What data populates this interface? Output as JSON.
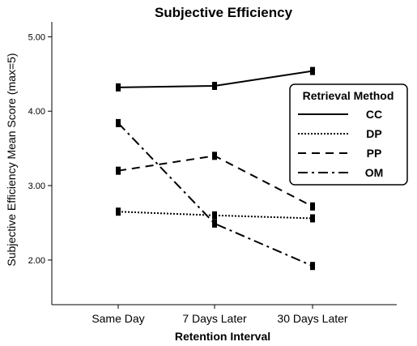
{
  "chart_data": {
    "type": "line",
    "title": "Subjective Efficiency",
    "xlabel": "Retention Interval",
    "ylabel": "Subjective Efficiency Mean Score (max=5)",
    "categories": [
      "Same Day",
      "7 Days Later",
      "30 Days Later"
    ],
    "ylim": [
      1.4,
      5.2
    ],
    "yticks": [
      "2.00",
      "3.00",
      "4.00",
      "5.00"
    ],
    "grid": false,
    "legend": {
      "title": "Retrieval Method",
      "placement": "right"
    },
    "series": [
      {
        "name": "CC",
        "style": "solid",
        "values": [
          4.32,
          4.34,
          4.54
        ]
      },
      {
        "name": "DP",
        "style": "dotted",
        "values": [
          2.65,
          2.6,
          2.56
        ]
      },
      {
        "name": "PP",
        "style": "dashed",
        "values": [
          3.2,
          3.4,
          2.72
        ]
      },
      {
        "name": "OM",
        "style": "dashdot",
        "values": [
          3.84,
          2.49,
          1.92
        ]
      }
    ]
  }
}
